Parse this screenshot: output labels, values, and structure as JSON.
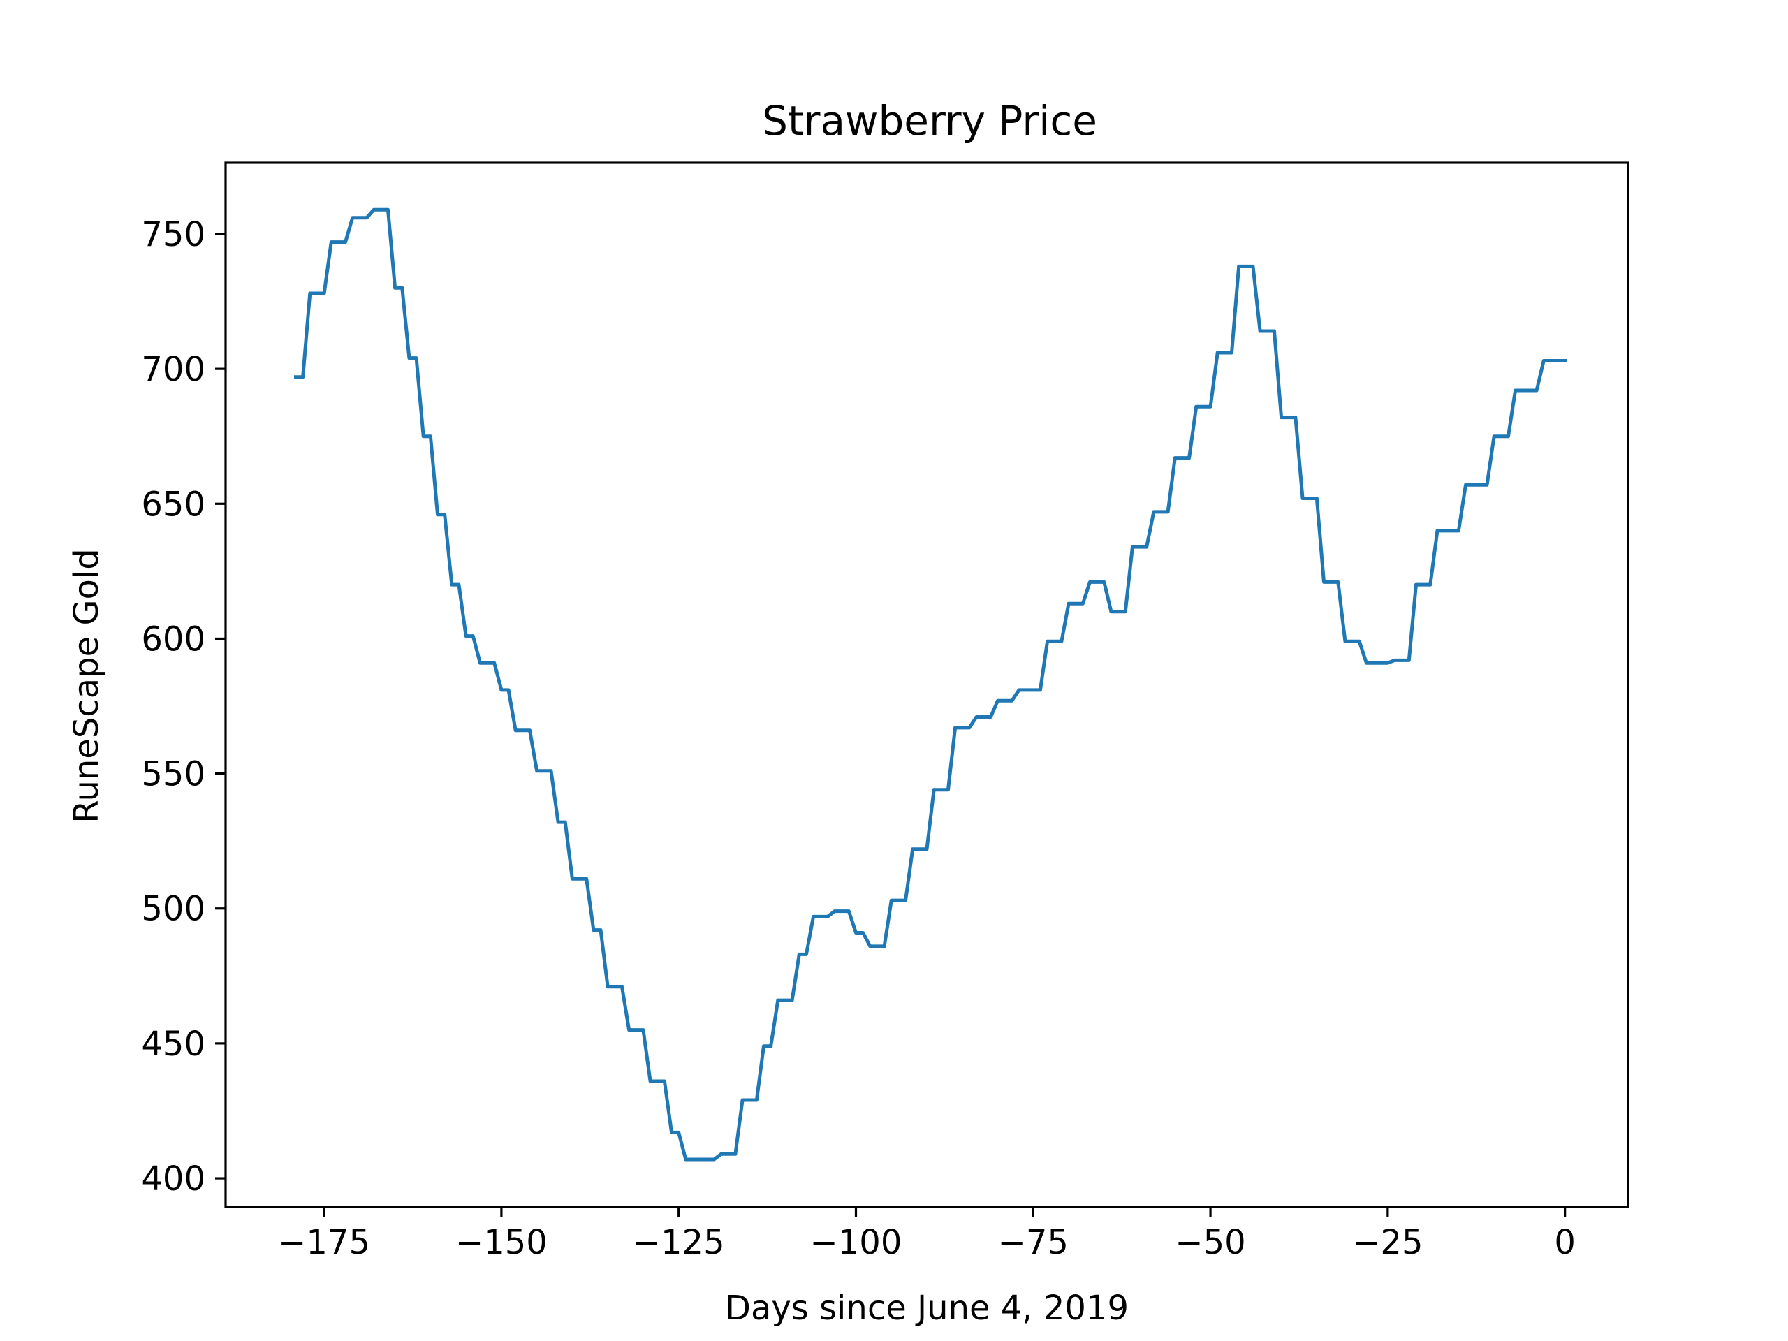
{
  "chart_data": {
    "type": "line",
    "title": "Strawberry Price",
    "xlabel": "Days since June 4, 2019",
    "ylabel": "RuneScape Gold",
    "xlim": [
      -188.9,
      8.9
    ],
    "ylim": [
      389.4,
      776.4
    ],
    "xticks": [
      -175,
      -150,
      -125,
      -100,
      -75,
      -50,
      -25,
      0
    ],
    "xtick_labels": [
      "−175",
      "−150",
      "−125",
      "−100",
      "−75",
      "−50",
      "−25",
      "0"
    ],
    "yticks": [
      400,
      450,
      500,
      550,
      600,
      650,
      700,
      750
    ],
    "ytick_labels": [
      "400",
      "450",
      "500",
      "550",
      "600",
      "650",
      "700",
      "750"
    ],
    "grid": false,
    "legend": "none",
    "line_color": "#1f77b4",
    "series": [
      {
        "x": [
          -179,
          -178,
          -177,
          -176,
          -175,
          -174,
          -173,
          -172,
          -171,
          -170,
          -169,
          -168,
          -167,
          -166,
          -165,
          -164,
          -163,
          -162,
          -161,
          -160,
          -159,
          -158,
          -157,
          -156,
          -155,
          -154,
          -153,
          -152,
          -151,
          -150,
          -149,
          -148,
          -147,
          -146,
          -145,
          -144,
          -143,
          -142,
          -141,
          -140,
          -139,
          -138,
          -137,
          -136,
          -135,
          -134,
          -133,
          -132,
          -131,
          -130,
          -129,
          -128,
          -127,
          -126,
          -125,
          -124,
          -123,
          -122,
          -121,
          -120,
          -119,
          -118,
          -117,
          -116,
          -115,
          -114,
          -113,
          -112,
          -111,
          -110,
          -109,
          -108,
          -107,
          -106,
          -105,
          -104,
          -103,
          -102,
          -101,
          -100,
          -99,
          -98,
          -97,
          -96,
          -95,
          -94,
          -93,
          -92,
          -91,
          -90,
          -89,
          -88,
          -87,
          -86,
          -85,
          -84,
          -83,
          -82,
          -81,
          -80,
          -79,
          -78,
          -77,
          -76,
          -75,
          -74,
          -73,
          -72,
          -71,
          -70,
          -69,
          -68,
          -67,
          -66,
          -65,
          -64,
          -63,
          -62,
          -61,
          -60,
          -59,
          -58,
          -57,
          -56,
          -55,
          -54,
          -53,
          -52,
          -51,
          -50,
          -49,
          -48,
          -47,
          -46,
          -45,
          -44,
          -43,
          -42,
          -41,
          -40,
          -39,
          -38,
          -37,
          -36,
          -35,
          -34,
          -33,
          -32,
          -31,
          -30,
          -29,
          -28,
          -27,
          -26,
          -25,
          -24,
          -23,
          -22,
          -21,
          -20,
          -19,
          -18,
          -17,
          -16,
          -15,
          -14,
          -13,
          -12,
          -11,
          -10,
          -9,
          -8,
          -7,
          -6,
          -5,
          -4,
          -3,
          -2,
          -1,
          0
        ],
        "y": [
          697,
          697,
          728,
          728,
          728,
          747,
          747,
          747,
          756,
          756,
          756,
          759,
          759,
          759,
          730,
          730,
          704,
          704,
          675,
          675,
          646,
          646,
          620,
          620,
          601,
          601,
          591,
          591,
          591,
          581,
          581,
          566,
          566,
          566,
          551,
          551,
          551,
          532,
          532,
          511,
          511,
          511,
          492,
          492,
          471,
          471,
          471,
          455,
          455,
          455,
          436,
          436,
          436,
          417,
          417,
          407,
          407,
          407,
          407,
          407,
          409,
          409,
          409,
          429,
          429,
          429,
          449,
          449,
          466,
          466,
          466,
          483,
          483,
          497,
          497,
          497,
          499,
          499,
          499,
          491,
          491,
          486,
          486,
          486,
          503,
          503,
          503,
          522,
          522,
          522,
          544,
          544,
          544,
          567,
          567,
          567,
          571,
          571,
          571,
          577,
          577,
          577,
          581,
          581,
          581,
          581,
          599,
          599,
          599,
          613,
          613,
          613,
          621,
          621,
          621,
          610,
          610,
          610,
          634,
          634,
          634,
          647,
          647,
          647,
          667,
          667,
          667,
          686,
          686,
          686,
          706,
          706,
          706,
          738,
          738,
          738,
          714,
          714,
          714,
          682,
          682,
          682,
          652,
          652,
          652,
          621,
          621,
          621,
          599,
          599,
          599,
          591,
          591,
          591,
          591,
          592,
          592,
          592,
          620,
          620,
          620,
          640,
          640,
          640,
          640,
          657,
          657,
          657,
          657,
          675,
          675,
          675,
          692,
          692,
          692,
          692,
          703,
          703,
          703,
          703
        ]
      }
    ]
  }
}
